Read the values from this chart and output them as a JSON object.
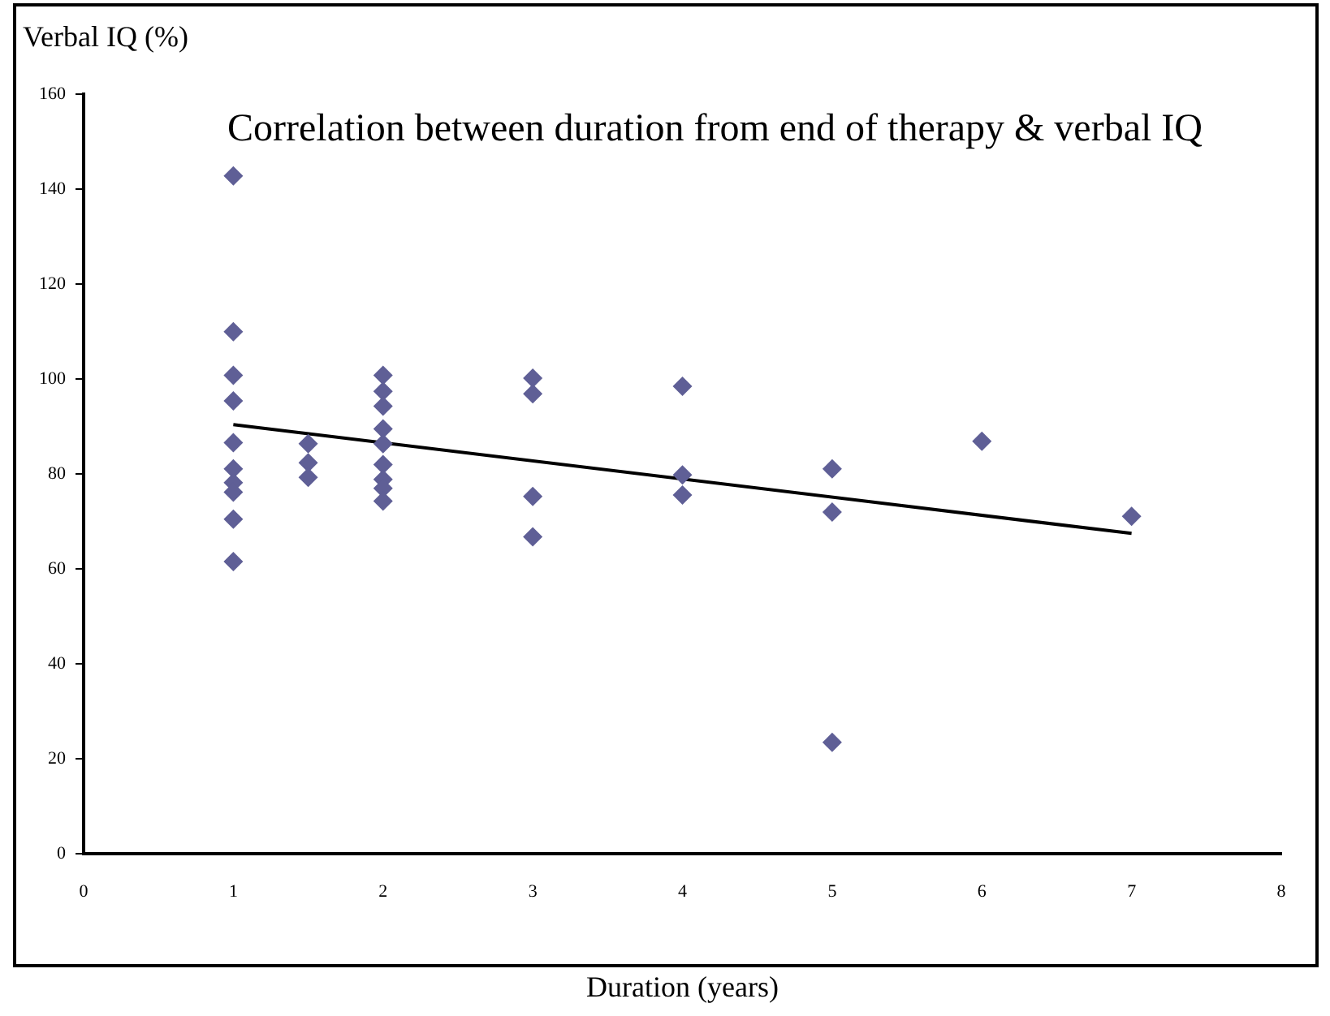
{
  "chart_data": {
    "type": "scatter",
    "title": "Correlation between duration from end of therapy & verbal IQ",
    "xlabel": "Duration (years)",
    "ylabel": "Verbal IQ (%)",
    "xlim": [
      0,
      8
    ],
    "xticks": [
      0,
      1,
      2,
      3,
      4,
      5,
      6,
      7,
      8
    ],
    "ylim": [
      0,
      160
    ],
    "yticks": [
      0,
      20,
      40,
      60,
      80,
      100,
      120,
      140,
      160
    ],
    "grid": false,
    "legend": false,
    "marker": "diamond",
    "series": [
      {
        "type": "scatter",
        "color": "#5f5f96",
        "x": [
          1,
          1,
          1,
          1,
          1,
          1,
          1,
          1,
          1,
          1,
          1.5,
          1.5,
          1.5,
          2,
          2,
          2,
          2,
          2,
          2,
          2,
          2,
          2,
          3,
          3,
          3,
          3,
          4,
          4,
          4,
          5,
          5,
          5,
          6,
          7
        ],
        "values": [
          142.8,
          110,
          100.8,
          95.4,
          86.6,
          81.1,
          78.2,
          76.2,
          70.5,
          61.6,
          86.4,
          82.4,
          79.3,
          100.8,
          97.4,
          94.3,
          89.5,
          86.4,
          82,
          78.9,
          77,
          74.3,
          100.2,
          96.9,
          75.3,
          66.8,
          98.5,
          79.8,
          75.6,
          81.1,
          72,
          23.5,
          86.9,
          71.1
        ]
      },
      {
        "type": "line",
        "color": "#000000",
        "marker": "none",
        "line_style": "solid",
        "x": [
          1,
          7
        ],
        "values": [
          90.4,
          67.5
        ]
      }
    ]
  }
}
